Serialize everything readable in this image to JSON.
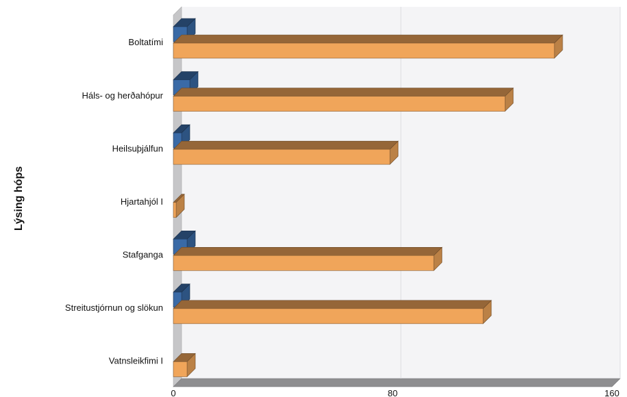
{
  "chart_data": {
    "type": "bar",
    "orientation": "horizontal",
    "three_d": true,
    "xlabel": "",
    "ylabel": "Lýsing hóps",
    "xlim": [
      0,
      160
    ],
    "xticks": [
      0,
      80,
      160
    ],
    "grid": true,
    "categories": [
      "Boltatími",
      "Háls- og herðahópur",
      "Heilsuþjálfun",
      "Hjartahjól I",
      "Stafganga",
      "Streitustjórnun og slökun",
      "Vatnsleikfimi I"
    ],
    "series": [
      {
        "color": "#3a6aa6",
        "values": [
          5,
          6,
          3,
          0,
          5,
          3,
          0
        ]
      },
      {
        "color": "#f0a55a",
        "values": [
          139,
          121,
          79,
          1,
          95,
          113,
          5
        ]
      }
    ]
  }
}
